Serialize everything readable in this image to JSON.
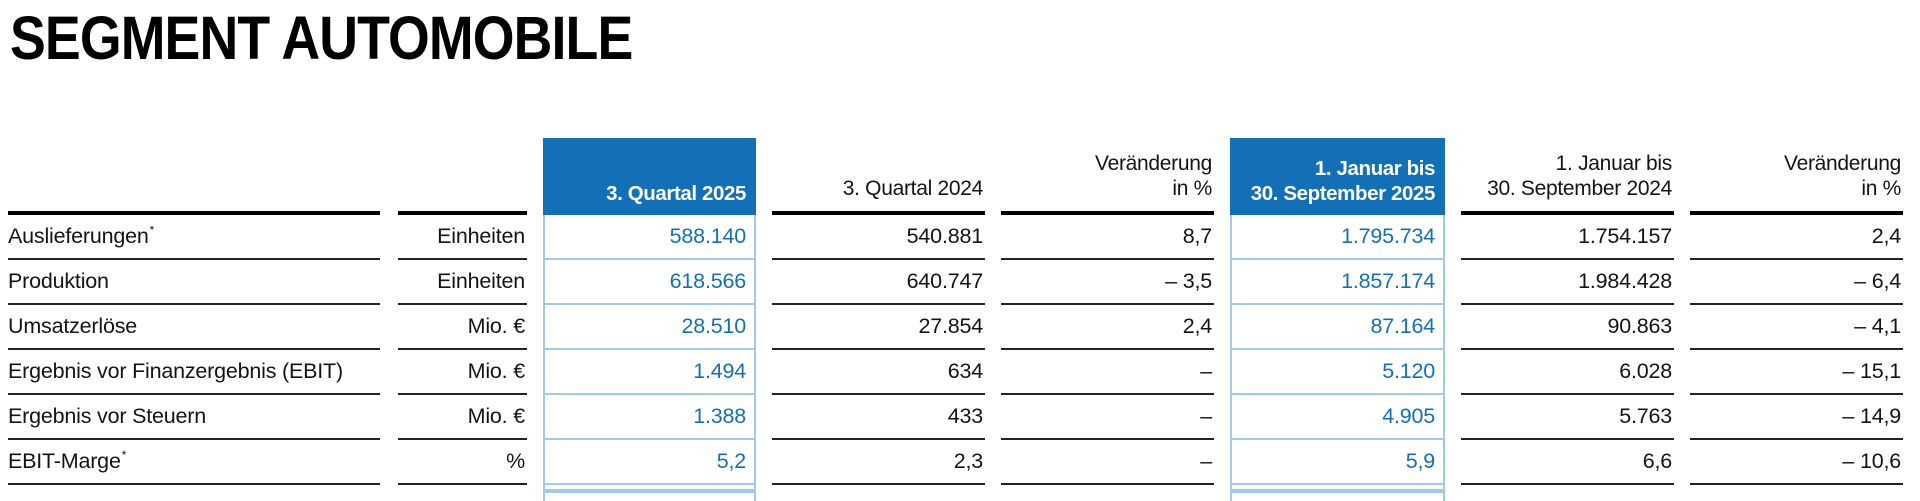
{
  "page": {
    "title": "SEGMENT AUTOMOBILE"
  },
  "colors": {
    "accent_blue": "#1470b6",
    "cell_border_blue": "#a4c9e3",
    "header_rule": "#000000",
    "row_line": "#232323"
  },
  "table": {
    "headers": {
      "q3_2025": "3. Quartal 2025",
      "q3_2024": "3. Quartal 2024",
      "chg_line1": "Veränderung",
      "chg_line2": "in %",
      "ytd_2025_line1": "1. Januar bis",
      "ytd_2025_line2": "30. September 2025",
      "ytd_2024_line1": "1. Januar bis",
      "ytd_2024_line2": "30. September 2024"
    },
    "rows": [
      {
        "label": "Auslieferungen",
        "sup": "*",
        "unit": "Einheiten",
        "q3_2025": "588.140",
        "q3_2024": "540.881",
        "chg_quarter": "8,7",
        "ytd_2025": "1.795.734",
        "ytd_2024": "1.754.157",
        "chg_ytd": "2,4"
      },
      {
        "label": "Produktion",
        "sup": "",
        "unit": "Einheiten",
        "q3_2025": "618.566",
        "q3_2024": "640.747",
        "chg_quarter": "– 3,5",
        "ytd_2025": "1.857.174",
        "ytd_2024": "1.984.428",
        "chg_ytd": "– 6,4"
      },
      {
        "label": "Umsatzerlöse",
        "sup": "",
        "unit": "Mio. €",
        "q3_2025": "28.510",
        "q3_2024": "27.854",
        "chg_quarter": "2,4",
        "ytd_2025": "87.164",
        "ytd_2024": "90.863",
        "chg_ytd": "– 4,1"
      },
      {
        "label": "Ergebnis vor Finanzergebnis (EBIT)",
        "sup": "",
        "unit": "Mio. €",
        "q3_2025": "1.494",
        "q3_2024": "634",
        "chg_quarter": "–",
        "ytd_2025": "5.120",
        "ytd_2024": "6.028",
        "chg_ytd": "– 15,1"
      },
      {
        "label": "Ergebnis vor Steuern",
        "sup": "",
        "unit": "Mio. €",
        "q3_2025": "1.388",
        "q3_2024": "433",
        "chg_quarter": "–",
        "ytd_2025": "4.905",
        "ytd_2024": "5.763",
        "chg_ytd": "– 14,9"
      },
      {
        "label": "EBIT-Marge",
        "sup": "*",
        "unit": "%",
        "q3_2025": "5,2",
        "q3_2024": "2,3",
        "chg_quarter": "–",
        "ytd_2025": "5,9",
        "ytd_2024": "6,6",
        "chg_ytd": "– 10,6"
      }
    ]
  }
}
